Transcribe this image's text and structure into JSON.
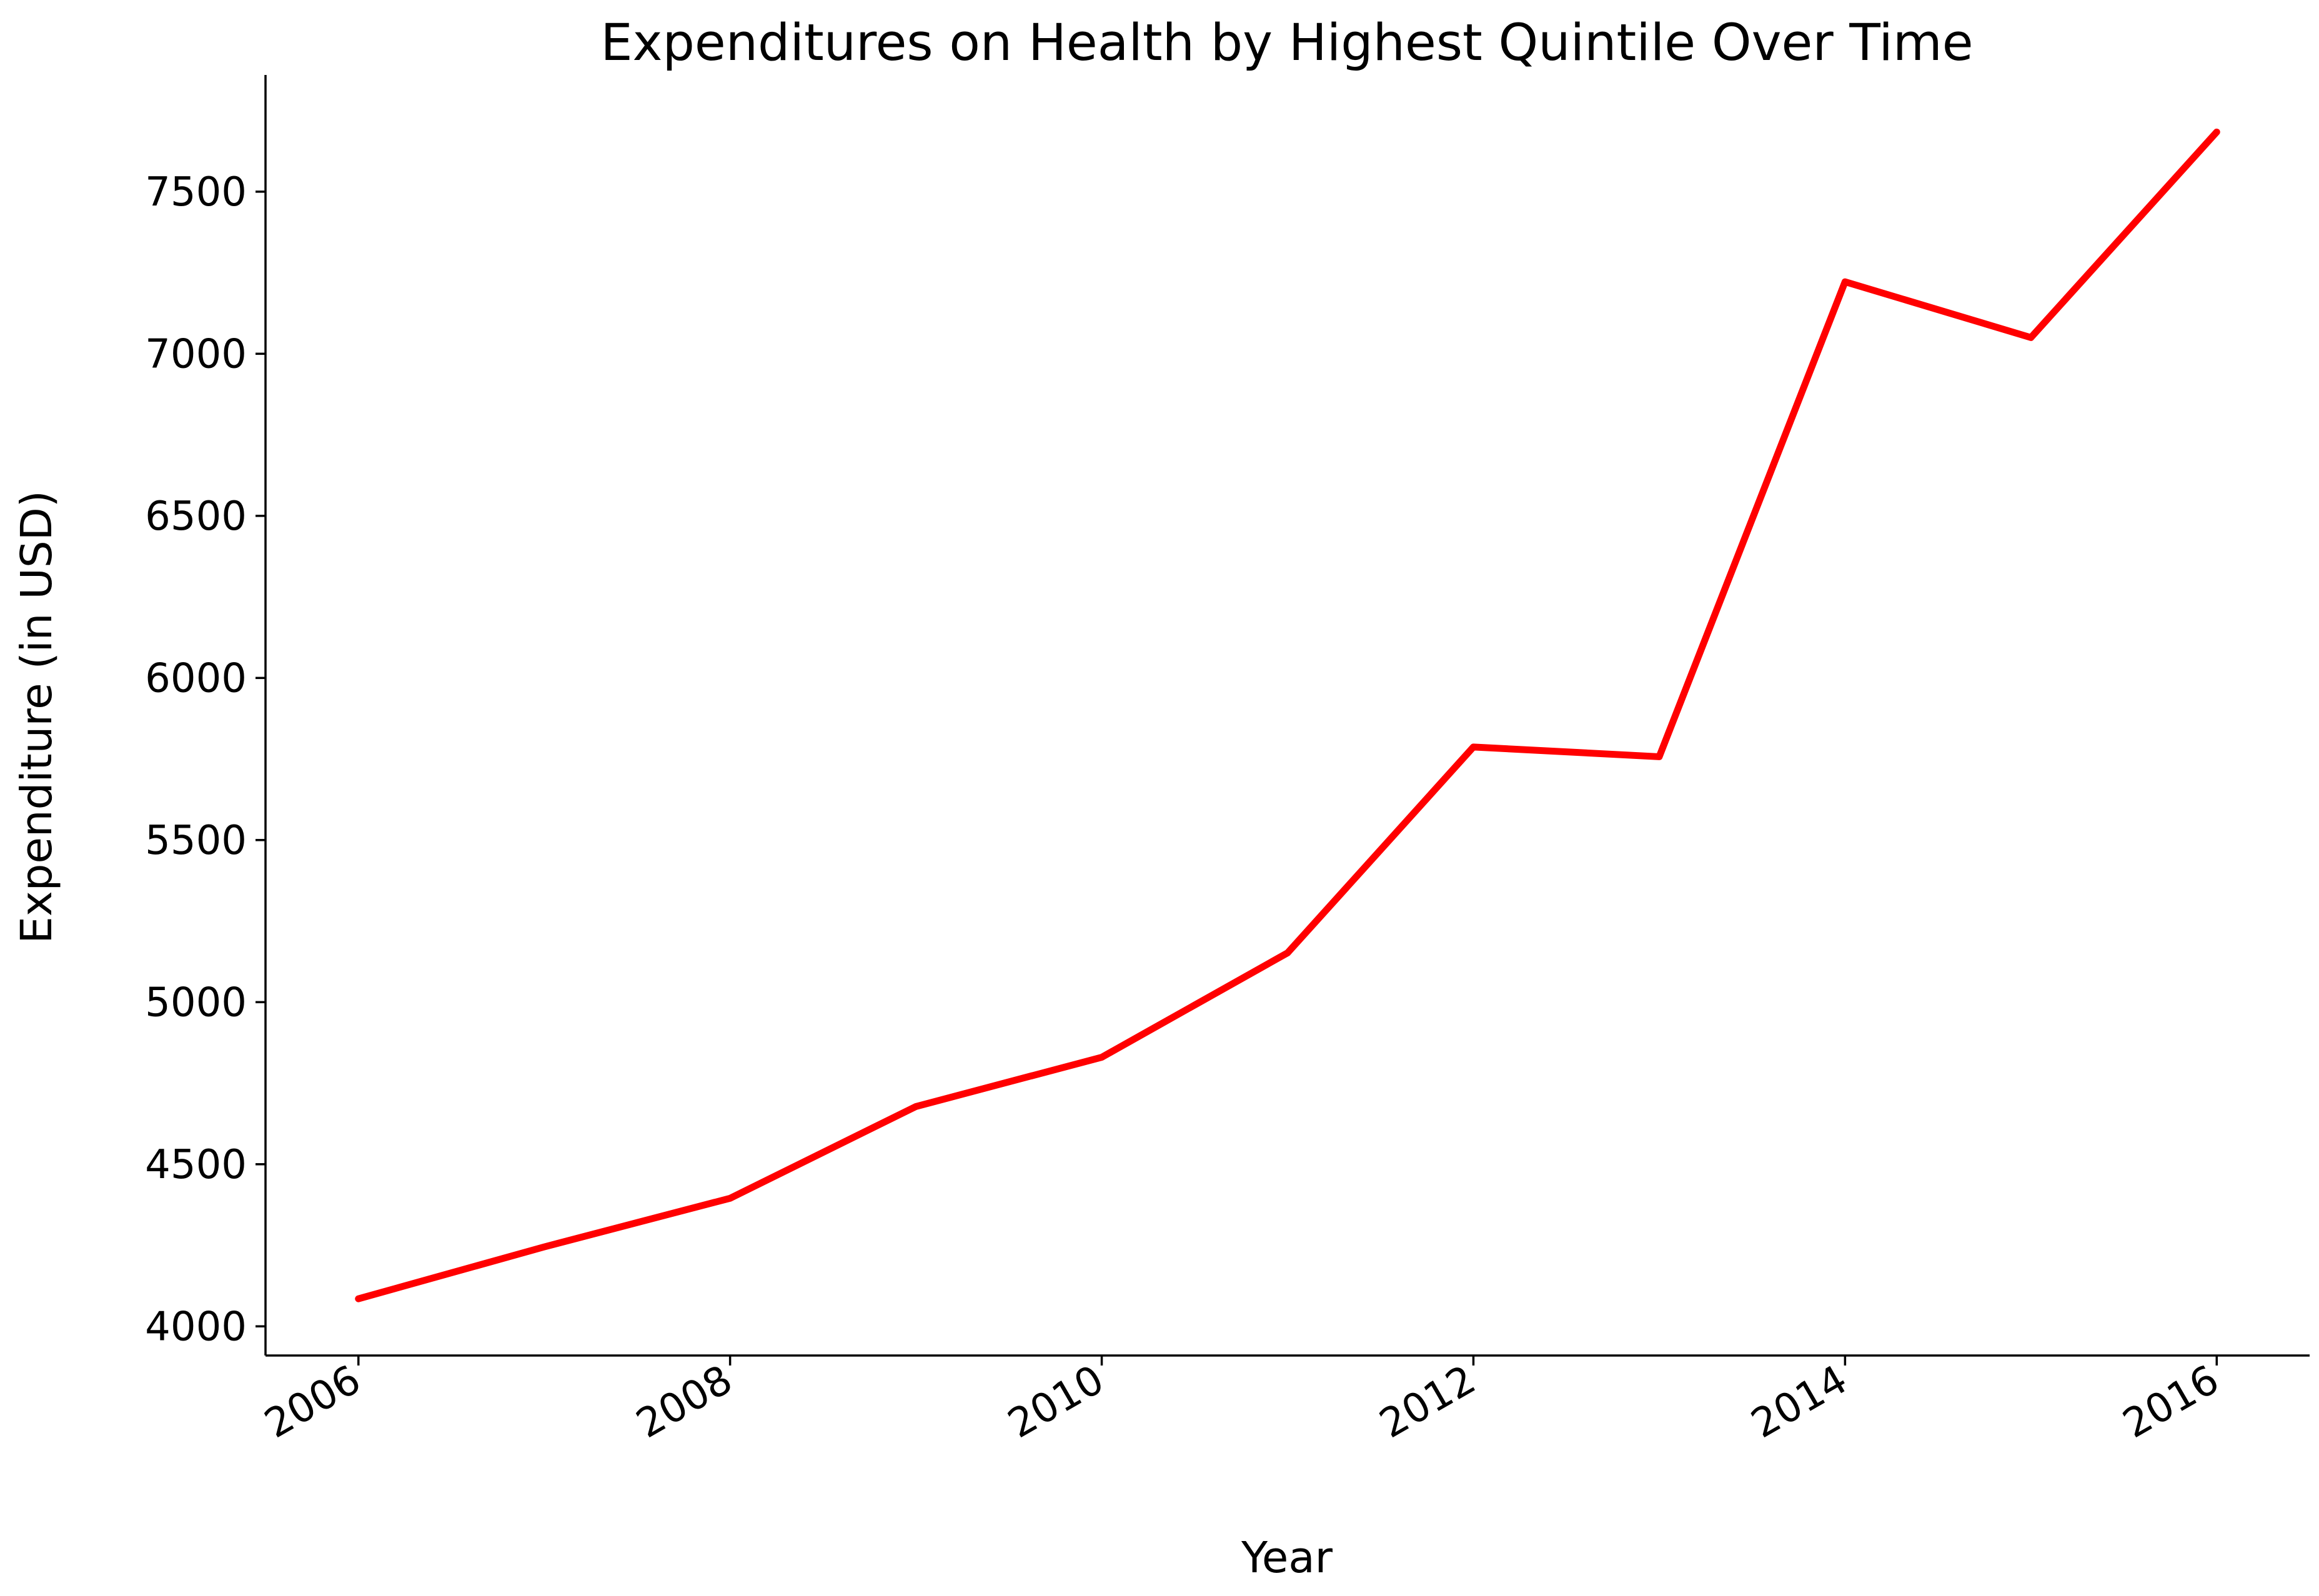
{
  "chart_data": {
    "type": "line",
    "title": "Expenditures on Health by Highest Quintile Over Time",
    "xlabel": "Year",
    "ylabel": "Expenditure (in USD)",
    "x": [
      2006,
      2007,
      2008,
      2009,
      2010,
      2011,
      2012,
      2013,
      2014,
      2015,
      2016
    ],
    "series": [
      {
        "values": [
          4085,
          4245,
          4395,
          4678,
          4830,
          5152,
          5787,
          5757,
          7222,
          7050,
          7684
        ],
        "color": "#ff0000"
      }
    ],
    "xlim": [
      2005.5,
      2016.5
    ],
    "ylim": [
      3910,
      7860
    ],
    "x_ticks": [
      "2006",
      "2008",
      "2010",
      "2012",
      "2014",
      "2016"
    ],
    "y_ticks": [
      "4000",
      "4500",
      "5000",
      "5500",
      "6000",
      "6500",
      "7000",
      "7500"
    ],
    "x_tick_rotation_deg": 30,
    "grid": false,
    "legend": "none"
  }
}
